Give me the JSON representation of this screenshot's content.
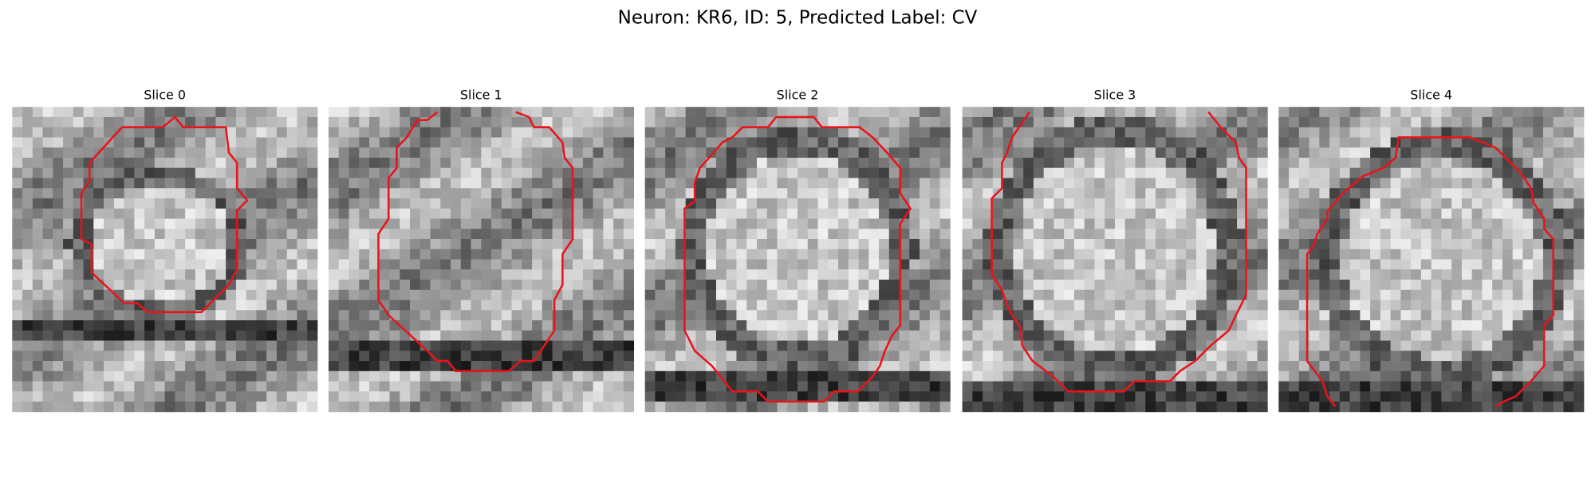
{
  "title": "Neuron: KR6, ID: 5, Predicted Label: CV",
  "panels": [
    {
      "title": "Slice 0"
    },
    {
      "title": "Slice 1"
    },
    {
      "title": "Slice 2"
    },
    {
      "title": "Slice 3"
    },
    {
      "title": "Slice 4"
    }
  ]
}
